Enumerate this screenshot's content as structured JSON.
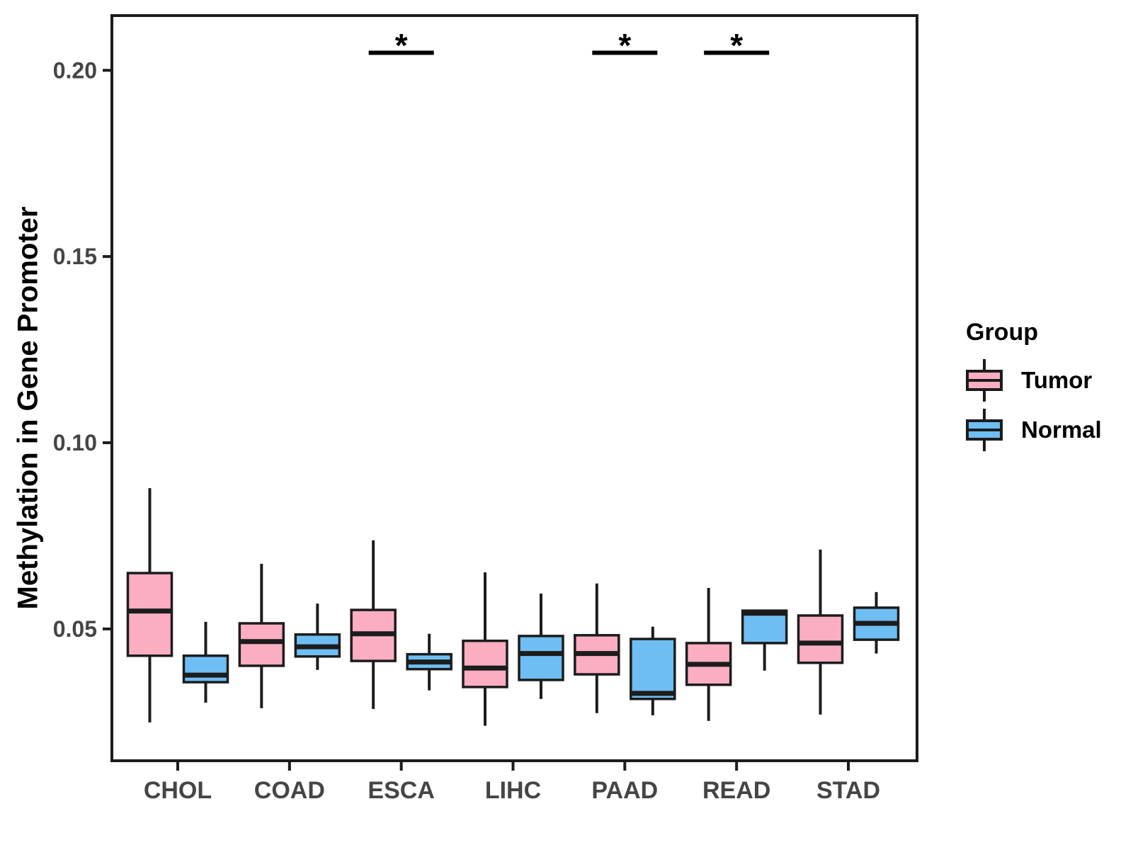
{
  "legend": {
    "title": "Group",
    "items": [
      {
        "label": "Tumor",
        "color": "#FBAEC2"
      },
      {
        "label": "Normal",
        "color": "#6FBEF3"
      }
    ]
  },
  "chart_data": {
    "type": "boxplot",
    "title": "",
    "xlabel": "",
    "ylabel": "Methylation in Gene Promoter",
    "categories": [
      "CHOL",
      "COAD",
      "ESCA",
      "LIHC",
      "PAAD",
      "READ",
      "STAD"
    ],
    "series": [
      {
        "name": "Tumor",
        "color": "#FBAEC2",
        "boxes": [
          {
            "whisker_low": 0.0249,
            "q1": 0.0428,
            "median": 0.0548,
            "q3": 0.065,
            "whisker_high": 0.0878
          },
          {
            "whisker_low": 0.0287,
            "q1": 0.0401,
            "median": 0.0466,
            "q3": 0.0515,
            "whisker_high": 0.0675
          },
          {
            "whisker_low": 0.0285,
            "q1": 0.0414,
            "median": 0.0487,
            "q3": 0.0551,
            "whisker_high": 0.0738
          },
          {
            "whisker_low": 0.024,
            "q1": 0.0344,
            "median": 0.0395,
            "q3": 0.0468,
            "whisker_high": 0.0652
          },
          {
            "whisker_low": 0.0274,
            "q1": 0.0378,
            "median": 0.0434,
            "q3": 0.0483,
            "whisker_high": 0.0622
          },
          {
            "whisker_low": 0.0253,
            "q1": 0.035,
            "median": 0.0405,
            "q3": 0.0462,
            "whisker_high": 0.061
          },
          {
            "whisker_low": 0.027,
            "q1": 0.0409,
            "median": 0.0462,
            "q3": 0.0536,
            "whisker_high": 0.0713
          }
        ]
      },
      {
        "name": "Normal",
        "color": "#6FBEF3",
        "boxes": [
          {
            "whisker_low": 0.0302,
            "q1": 0.0357,
            "median": 0.0376,
            "q3": 0.0428,
            "whisker_high": 0.0519
          },
          {
            "whisker_low": 0.039,
            "q1": 0.0426,
            "median": 0.0452,
            "q3": 0.0485,
            "whisker_high": 0.0568
          },
          {
            "whisker_low": 0.0335,
            "q1": 0.0392,
            "median": 0.0411,
            "q3": 0.0432,
            "whisker_high": 0.0487
          },
          {
            "whisker_low": 0.0312,
            "q1": 0.0363,
            "median": 0.0434,
            "q3": 0.0481,
            "whisker_high": 0.0595
          },
          {
            "whisker_low": 0.0268,
            "q1": 0.0312,
            "median": 0.0327,
            "q3": 0.0473,
            "whisker_high": 0.0506
          },
          {
            "whisker_low": 0.0388,
            "q1": 0.0462,
            "median": 0.0542,
            "q3": 0.0549,
            "whisker_high": 0.0549
          },
          {
            "whisker_low": 0.0434,
            "q1": 0.0471,
            "median": 0.0515,
            "q3": 0.0557,
            "whisker_high": 0.0599
          }
        ]
      }
    ],
    "significance": [
      {
        "category": "ESCA",
        "label": "*"
      },
      {
        "category": "PAAD",
        "label": "*"
      },
      {
        "category": "READ",
        "label": "*"
      }
    ],
    "y_ticks": [
      0.05,
      0.1,
      0.15,
      0.2
    ],
    "y_tick_labels": [
      "0.05",
      "0.10",
      "0.15",
      "0.20"
    ],
    "ylim": [
      0.0146,
      0.2147
    ],
    "grid": false,
    "legend_position": "right",
    "axis_text_color": "#454545",
    "line_color": "#1C1C1C"
  }
}
